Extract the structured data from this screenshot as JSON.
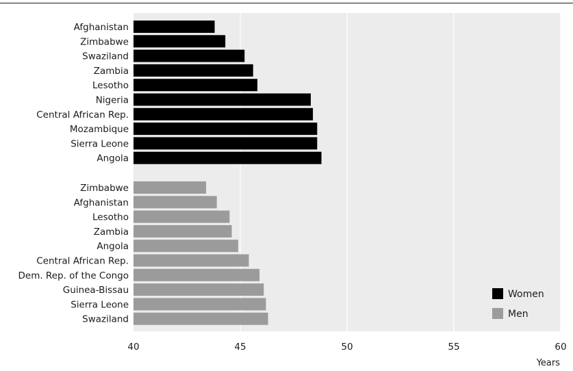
{
  "chart_data": {
    "type": "bar",
    "orientation": "horizontal",
    "title": "",
    "xlabel": "Years",
    "ylabel": "",
    "xlim": [
      40,
      60
    ],
    "x_ticks": [
      40,
      45,
      50,
      55,
      60
    ],
    "grid": "vertical",
    "legend_position": "bottom-right",
    "series": [
      {
        "name": "Women",
        "color": "#000000",
        "categories": [
          "Afghanistan",
          "Zimbabwe",
          "Swaziland",
          "Zambia",
          "Lesotho",
          "Nigeria",
          "Central African Rep.",
          "Mozambique",
          "Sierra Leone",
          "Angola"
        ],
        "values": [
          43.8,
          44.3,
          45.2,
          45.6,
          45.8,
          48.3,
          48.4,
          48.6,
          48.6,
          48.8
        ]
      },
      {
        "name": "Men",
        "color": "#9b9b9b",
        "categories": [
          "Zimbabwe",
          "Afghanistan",
          "Lesotho",
          "Zambia",
          "Angola",
          "Central African Rep.",
          "Dem. Rep. of the Congo",
          "Guinea-Bissau",
          "Sierra Leone",
          "Swaziland"
        ],
        "values": [
          43.4,
          43.9,
          44.5,
          44.6,
          44.9,
          45.4,
          45.9,
          46.1,
          46.2,
          46.3
        ]
      }
    ]
  }
}
